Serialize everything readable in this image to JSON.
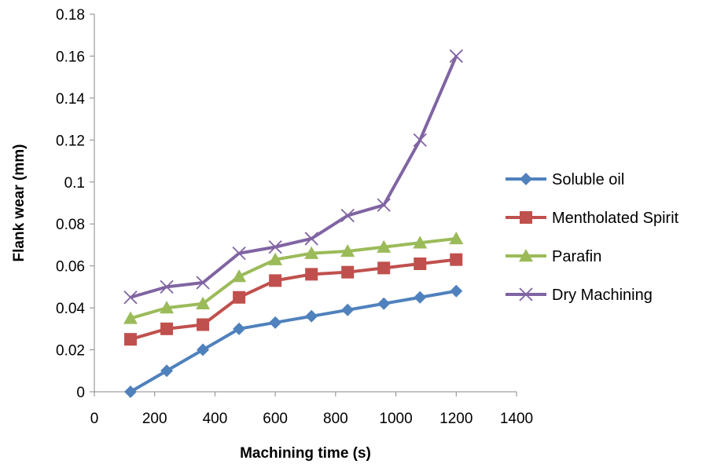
{
  "chart_data": {
    "type": "line",
    "title": "",
    "xlabel": "Machining time (s)",
    "ylabel": "Flank wear (mm)",
    "xlim": [
      0,
      1400
    ],
    "ylim": [
      0,
      0.18
    ],
    "xticks": [
      0,
      200,
      400,
      600,
      800,
      1000,
      1200,
      1400
    ],
    "yticks": [
      0,
      0.02,
      0.04,
      0.06,
      0.08,
      0.1,
      0.12,
      0.14,
      0.16,
      0.18
    ],
    "x_tick_labels": [
      "0",
      "200",
      "400",
      "600",
      "800",
      "1000",
      "1200",
      "1400"
    ],
    "y_tick_labels": [
      "0",
      "0.02",
      "0.04",
      "0.06",
      "0.08",
      "0.1",
      "0.12",
      "0.14",
      "0.16",
      "0.18"
    ],
    "grid": false,
    "legend_position": "right",
    "x": [
      120,
      240,
      360,
      480,
      600,
      720,
      840,
      960,
      1080,
      1200
    ],
    "series": [
      {
        "name": "Soluble oil",
        "color": "#4F81BD",
        "marker": "diamond",
        "values": [
          0.0,
          0.01,
          0.02,
          0.03,
          0.033,
          0.036,
          0.039,
          0.042,
          0.045,
          0.048
        ]
      },
      {
        "name": "Mentholated Spirit",
        "color": "#C0504D",
        "marker": "square",
        "values": [
          0.025,
          0.03,
          0.032,
          0.045,
          0.053,
          0.056,
          0.057,
          0.059,
          0.061,
          0.063
        ]
      },
      {
        "name": "Parafin",
        "color": "#9BBB59",
        "marker": "triangle",
        "values": [
          0.035,
          0.04,
          0.042,
          0.055,
          0.063,
          0.066,
          0.067,
          0.069,
          0.071,
          0.073
        ]
      },
      {
        "name": "Dry Machining",
        "color": "#8064A2",
        "marker": "x",
        "values": [
          0.045,
          0.05,
          0.052,
          0.066,
          0.069,
          0.073,
          0.084,
          0.089,
          0.12,
          0.16
        ]
      }
    ]
  }
}
